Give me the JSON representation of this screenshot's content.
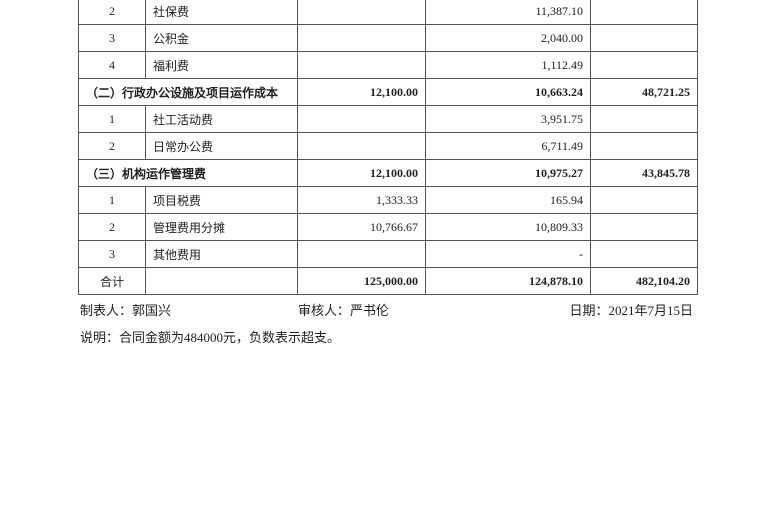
{
  "table": {
    "rows": [
      [
        "2",
        "社保费",
        null,
        "11,387.10",
        null
      ],
      [
        "3",
        "公积金",
        null,
        "2,040.00",
        null
      ],
      [
        "4",
        "福利费",
        null,
        "1,112.49",
        null
      ],
      [
        "（二）行政办公设施及项目运作成本",
        "12,100.00",
        "10,663.24",
        "48,721.25"
      ],
      [
        "1",
        "社工活动费",
        null,
        "3,951.75",
        null
      ],
      [
        "2",
        "日常办公费",
        null,
        "6,711.49",
        null
      ],
      [
        "（三）机构运作管理费",
        "12,100.00",
        "10,975.27",
        "43,845.78"
      ],
      [
        "1",
        "项目税费",
        "1,333.33",
        "165.94",
        null
      ],
      [
        "2",
        "管理费用分摊",
        "10,766.67",
        "10,809.33",
        null
      ],
      [
        "3",
        "其他费用",
        null,
        "-",
        null
      ],
      [
        "合计",
        null,
        "125,000.00",
        "124,878.10",
        "482,104.20"
      ]
    ]
  },
  "footer": {
    "preparer": "制表人：郭国兴",
    "reviewer": "审核人：严书伦",
    "date": "日期：2021年7月15日",
    "note": "说明：合同金额为484000元，负数表示超支。"
  }
}
